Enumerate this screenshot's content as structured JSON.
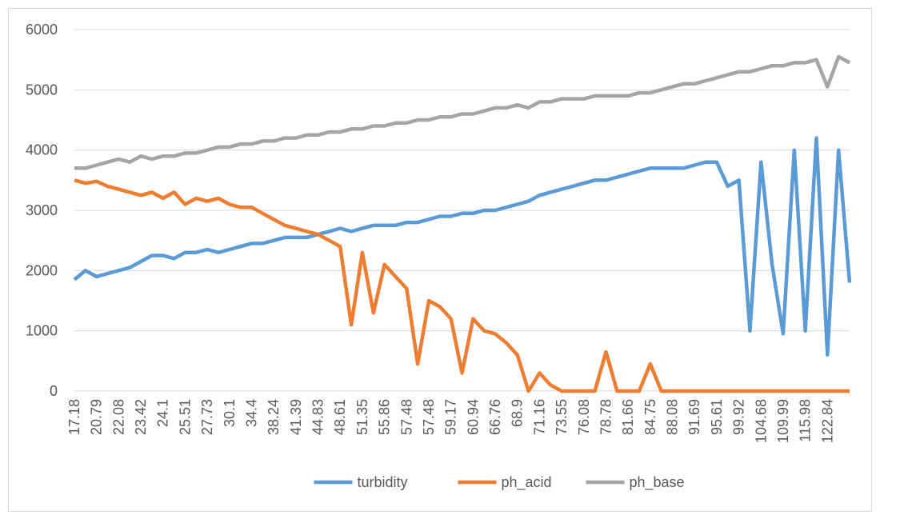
{
  "chart_data": {
    "type": "line",
    "categories": [
      "17.18",
      null,
      "20.79",
      null,
      "22.08",
      null,
      "23.42",
      null,
      "24.1",
      null,
      "25.51",
      null,
      "27.73",
      null,
      "30.1",
      null,
      "34.4",
      null,
      "38.24",
      null,
      "41.39",
      null,
      "44.83",
      null,
      "48.61",
      null,
      "51.35",
      null,
      "55.86",
      null,
      "57.48",
      null,
      "57.48",
      null,
      "59.17",
      null,
      "60.94",
      null,
      "66.76",
      null,
      "68.9",
      null,
      "71.16",
      null,
      "73.55",
      null,
      "76.08",
      null,
      "78.78",
      null,
      "81.66",
      null,
      "84.75",
      null,
      "88.08",
      null,
      "91.69",
      null,
      "95.61",
      null,
      "99.92",
      null,
      "104.68",
      null,
      "109.99",
      null,
      "115.98",
      null,
      "122.84",
      null,
      null
    ],
    "series": [
      {
        "name": "turbidity",
        "color": "#5b9bd5",
        "values": [
          1850,
          2000,
          1900,
          1950,
          2000,
          2050,
          2150,
          2250,
          2250,
          2200,
          2300,
          2300,
          2350,
          2300,
          2350,
          2400,
          2450,
          2450,
          2500,
          2550,
          2550,
          2550,
          2600,
          2650,
          2700,
          2650,
          2700,
          2750,
          2750,
          2750,
          2800,
          2800,
          2850,
          2900,
          2900,
          2950,
          2950,
          3000,
          3000,
          3050,
          3100,
          3150,
          3250,
          3300,
          3350,
          3400,
          3450,
          3500,
          3500,
          3550,
          3600,
          3650,
          3700,
          3700,
          3700,
          3700,
          3750,
          3800,
          3800,
          3400,
          3500,
          1000,
          3800,
          2100,
          950,
          4000,
          1000,
          4200,
          600,
          4000,
          1800
        ]
      },
      {
        "name": "ph_acid",
        "color": "#ed7d31",
        "values": [
          3500,
          3450,
          3480,
          3400,
          3350,
          3300,
          3250,
          3300,
          3200,
          3300,
          3100,
          3200,
          3150,
          3200,
          3100,
          3050,
          3050,
          2950,
          2850,
          2750,
          2700,
          2650,
          2600,
          2500,
          2400,
          1100,
          2300,
          1300,
          2100,
          1900,
          1700,
          450,
          1500,
          1400,
          1200,
          300,
          1200,
          1000,
          950,
          800,
          600,
          0,
          300,
          100,
          0,
          0,
          0,
          0,
          650,
          0,
          0,
          0,
          450,
          0,
          0,
          0,
          0,
          0,
          0,
          0,
          0,
          0,
          0,
          0,
          0,
          0,
          0,
          0,
          0,
          0,
          0
        ]
      },
      {
        "name": "ph_base",
        "color": "#a5a5a5",
        "values": [
          3700,
          3700,
          3750,
          3800,
          3850,
          3800,
          3900,
          3850,
          3900,
          3900,
          3950,
          3950,
          4000,
          4050,
          4050,
          4100,
          4100,
          4150,
          4150,
          4200,
          4200,
          4250,
          4250,
          4300,
          4300,
          4350,
          4350,
          4400,
          4400,
          4450,
          4450,
          4500,
          4500,
          4550,
          4550,
          4600,
          4600,
          4650,
          4700,
          4700,
          4750,
          4700,
          4800,
          4800,
          4850,
          4850,
          4850,
          4900,
          4900,
          4900,
          4900,
          4950,
          4950,
          5000,
          5050,
          5100,
          5100,
          5150,
          5200,
          5250,
          5300,
          5300,
          5350,
          5400,
          5400,
          5450,
          5450,
          5500,
          5050,
          5550,
          5450
        ]
      }
    ],
    "ylim": [
      0,
      6000
    ],
    "yticks": [
      0,
      1000,
      2000,
      3000,
      4000,
      5000,
      6000
    ],
    "grid": true,
    "legend": "bottom"
  }
}
